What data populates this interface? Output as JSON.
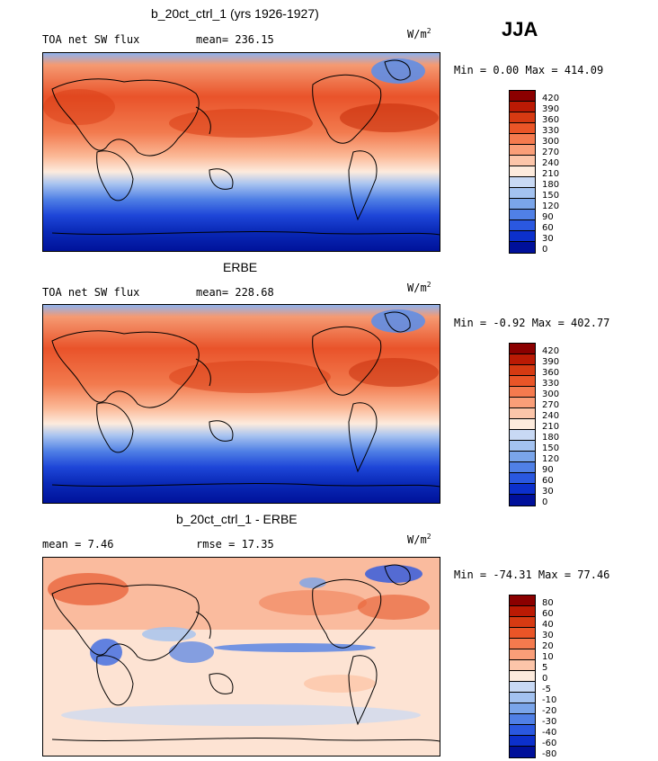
{
  "season": "JJA",
  "panels": [
    {
      "title": "b_20ct_ctrl_1 (yrs 1926-1927)",
      "left_label": "TOA net SW flux",
      "center_label": "mean= 236.15",
      "units": "W/m",
      "units_sup": "2",
      "minmax": "Min =   0.00 Max = 414.09",
      "colorbar": {
        "labels": [
          "420",
          "390",
          "360",
          "330",
          "300",
          "270",
          "240",
          "210",
          "180",
          "150",
          "120",
          "90",
          "60",
          "30",
          "0"
        ],
        "colors": [
          "#8b0000",
          "#bb1a04",
          "#d63a12",
          "#ea5527",
          "#f57a4e",
          "#fa9e78",
          "#fcc5a9",
          "#fdebdd",
          "#c8d9f4",
          "#a3c2f0",
          "#7aa5ea",
          "#5080e6",
          "#2a58e0",
          "#0c30cc",
          "#00109a"
        ]
      }
    },
    {
      "title": "ERBE",
      "left_label": "TOA net SW flux",
      "center_label": "mean= 228.68",
      "units": "W/m",
      "units_sup": "2",
      "minmax": "Min =  -0.92 Max = 402.77",
      "colorbar": {
        "labels": [
          "420",
          "390",
          "360",
          "330",
          "300",
          "270",
          "240",
          "210",
          "180",
          "150",
          "120",
          "90",
          "60",
          "30",
          "0"
        ],
        "colors": [
          "#8b0000",
          "#bb1a04",
          "#d63a12",
          "#ea5527",
          "#f57a4e",
          "#fa9e78",
          "#fcc5a9",
          "#fdebdd",
          "#c8d9f4",
          "#a3c2f0",
          "#7aa5ea",
          "#5080e6",
          "#2a58e0",
          "#0c30cc",
          "#00109a"
        ]
      }
    },
    {
      "title": "b_20ct_ctrl_1 - ERBE",
      "left_label": "mean =   7.46",
      "center_label": "rmse =  17.35",
      "units": "W/m",
      "units_sup": "2",
      "minmax": "Min = -74.31 Max =  77.46",
      "colorbar": {
        "labels": [
          "80",
          "60",
          "40",
          "30",
          "20",
          "10",
          "5",
          "0",
          "-5",
          "-10",
          "-20",
          "-30",
          "-40",
          "-60",
          "-80"
        ],
        "colors": [
          "#8b0000",
          "#bb1a04",
          "#d63a12",
          "#ea5527",
          "#f57a4e",
          "#fa9e78",
          "#fcc5a9",
          "#fdebdd",
          "#c8d9f4",
          "#a3c2f0",
          "#7aa5ea",
          "#5080e6",
          "#2a58e0",
          "#0c30cc",
          "#00109a"
        ]
      }
    }
  ]
}
